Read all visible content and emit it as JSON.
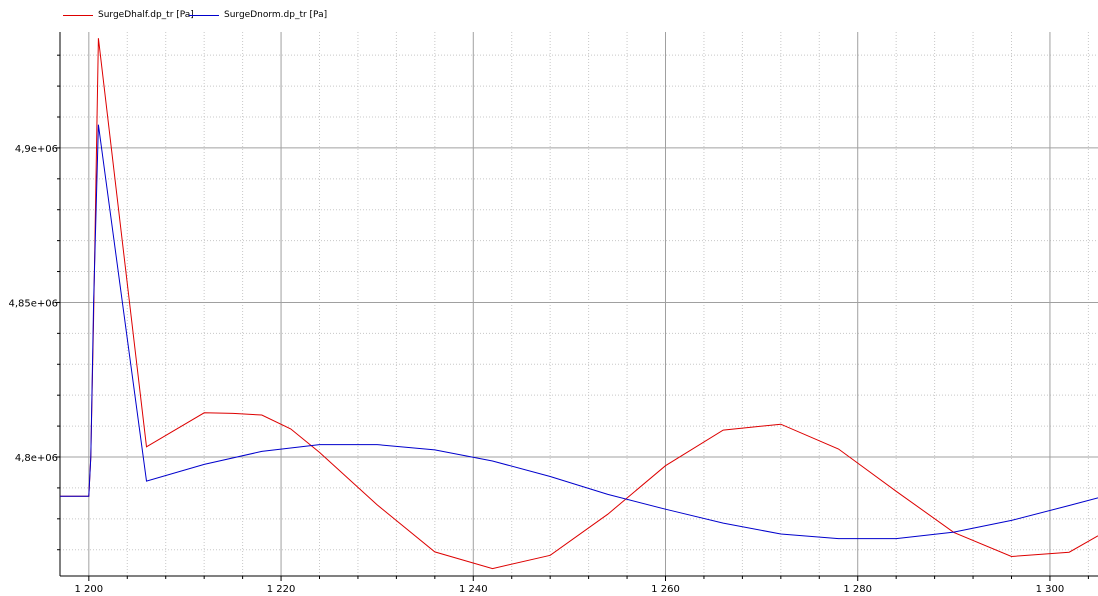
{
  "chart_data": {
    "type": "line",
    "legend_position": "top-left",
    "grid": true,
    "xlim": [
      1197,
      1305
    ],
    "ylim": [
      4761500.0,
      4937500.0
    ],
    "x_ticks": [
      1200,
      1220,
      1240,
      1260,
      1280,
      1300
    ],
    "x_tick_labels": [
      "1 200",
      "1 220",
      "1 240",
      "1 260",
      "1 280",
      "1 300"
    ],
    "y_ticks": [
      4800000.0,
      4850000.0,
      4900000.0
    ],
    "y_tick_labels": [
      "4,8e+06",
      "4,85e+06",
      "4,9e+06"
    ],
    "series": [
      {
        "name": "SurgeDhalf.dp_tr [Pa]",
        "color": "#dd0000",
        "points": [
          [
            1197,
            4787300.0
          ],
          [
            1200,
            4787300.0
          ],
          [
            1200.2,
            4800000.0
          ],
          [
            1200.5,
            4845000.0
          ],
          [
            1201,
            4935500.0
          ],
          [
            1206,
            4803300.0
          ],
          [
            1212,
            4814300.0
          ],
          [
            1215,
            4814100.0
          ],
          [
            1218,
            4813600.0
          ],
          [
            1221,
            4809100.0
          ],
          [
            1224,
            4801500.0
          ],
          [
            1230,
            4784500.0
          ],
          [
            1236,
            4769300.0
          ],
          [
            1242,
            4763900.0
          ],
          [
            1248,
            4768200.0
          ],
          [
            1254,
            4781500.0
          ],
          [
            1260,
            4797200.0
          ],
          [
            1266,
            4808700.0
          ],
          [
            1272,
            4810600.0
          ],
          [
            1278,
            4802600.0
          ],
          [
            1284,
            4788900.0
          ],
          [
            1290,
            4775600.0
          ],
          [
            1296,
            4767800.0
          ],
          [
            1302,
            4769200.0
          ],
          [
            1305,
            4774500.0
          ]
        ]
      },
      {
        "name": "SurgeDnorm.dp_tr [Pa]",
        "color": "#0000cc",
        "points": [
          [
            1197,
            4787300.0
          ],
          [
            1200,
            4787300.0
          ],
          [
            1200.2,
            4800000.0
          ],
          [
            1200.5,
            4850000.0
          ],
          [
            1201,
            4907500.0
          ],
          [
            1206,
            4792200.0
          ],
          [
            1212,
            4797600.0
          ],
          [
            1218,
            4801800.0
          ],
          [
            1224,
            4804000.0
          ],
          [
            1230,
            4804000.0
          ],
          [
            1236,
            4802300.0
          ],
          [
            1242,
            4798700.0
          ],
          [
            1248,
            4793700.0
          ],
          [
            1254,
            4787900.0
          ],
          [
            1260,
            4783100.0
          ],
          [
            1266,
            4778600.0
          ],
          [
            1272,
            4775100.0
          ],
          [
            1278,
            4773600.0
          ],
          [
            1284,
            4773600.0
          ],
          [
            1290,
            4775700.0
          ],
          [
            1296,
            4779500.0
          ],
          [
            1302,
            4784300.0
          ],
          [
            1305,
            4786800.0
          ]
        ]
      }
    ]
  }
}
